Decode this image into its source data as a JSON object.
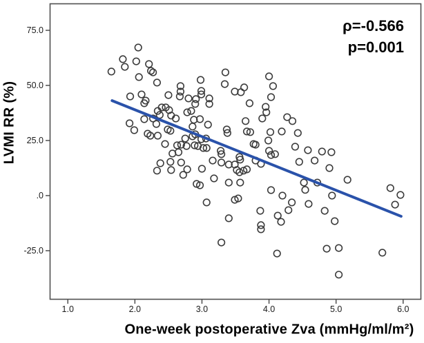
{
  "figure": {
    "background": "#ffffff"
  },
  "chart_data": {
    "type": "scatter",
    "title": "",
    "xlabel": "One-week postoperative Zva (mmHg/ml/m²)",
    "ylabel": "LVMI RR (%)",
    "annotation": {
      "rho": "ρ=-0.566",
      "p": "p=0.001"
    },
    "xlim": [
      0.73,
      6.27
    ],
    "ylim": [
      -47.2,
      87.2
    ],
    "grid": false,
    "legend": "none",
    "axis_color": "#4f4f4f",
    "tick_label_color": "#1a1a1a",
    "x_ticks": [
      {
        "v": 1.0,
        "label": "1.0"
      },
      {
        "v": 2.0,
        "label": "2.0"
      },
      {
        "v": 3.0,
        "label": "3.0"
      },
      {
        "v": 4.0,
        "label": "4.0"
      },
      {
        "v": 5.0,
        "label": "5.0"
      },
      {
        "v": 6.0,
        "label": "6.0"
      }
    ],
    "y_ticks": [
      {
        "v": 75,
        "label": "75.0"
      },
      {
        "v": 50,
        "label": "50.0"
      },
      {
        "v": 25,
        "label": "25.0"
      },
      {
        "v": 0,
        "label": ".0"
      },
      {
        "v": -25,
        "label": "-25.0"
      }
    ],
    "marker": {
      "shape": "open-circle",
      "radius": 4.8,
      "stroke": "#3c3c3c",
      "stroke_width": 1.6
    },
    "trend_line": {
      "x1": 1.66,
      "y1": 43.1,
      "x2": 5.97,
      "y2": -9.4,
      "color": "#2a52aa",
      "width": 4
    },
    "points": [
      [
        2.05,
        67.2
      ],
      [
        1.82,
        61.9
      ],
      [
        2.02,
        60.9
      ],
      [
        1.85,
        58.4
      ],
      [
        2.21,
        59.7
      ],
      [
        2.24,
        56.6
      ],
      [
        2.27,
        55.9
      ],
      [
        1.65,
        56.3
      ],
      [
        2.06,
        53.8
      ],
      [
        2.33,
        51.3
      ],
      [
        1.93,
        45.0
      ],
      [
        2.1,
        45.9
      ],
      [
        2.16,
        43.1
      ],
      [
        2.5,
        45.6
      ],
      [
        2.68,
        49.7
      ],
      [
        2.68,
        47.2
      ],
      [
        2.67,
        45.0
      ],
      [
        2.98,
        52.5
      ],
      [
        3.35,
        55.9
      ],
      [
        3.34,
        50.6
      ],
      [
        2.99,
        47.5
      ],
      [
        2.99,
        45.9
      ],
      [
        3.49,
        47.2
      ],
      [
        3.58,
        46.9
      ],
      [
        3.63,
        49.1
      ],
      [
        4.0,
        54.1
      ],
      [
        4.06,
        49.7
      ],
      [
        4.03,
        44.7
      ],
      [
        2.8,
        44.1
      ],
      [
        2.91,
        43.8
      ],
      [
        3.11,
        44.1
      ],
      [
        2.14,
        41.9
      ],
      [
        2.34,
        38.4
      ],
      [
        2.4,
        40.0
      ],
      [
        2.46,
        40.0
      ],
      [
        2.51,
        38.8
      ],
      [
        2.54,
        36.3
      ],
      [
        2.37,
        36.6
      ],
      [
        2.14,
        34.7
      ],
      [
        2.27,
        35.0
      ],
      [
        1.92,
        32.8
      ],
      [
        2.32,
        32.5
      ],
      [
        1.99,
        29.7
      ],
      [
        2.19,
        28.1
      ],
      [
        2.23,
        27.2
      ],
      [
        2.34,
        27.2
      ],
      [
        2.49,
        30.0
      ],
      [
        2.53,
        29.4
      ],
      [
        2.45,
        23.4
      ],
      [
        2.56,
        19.1
      ],
      [
        2.38,
        14.7
      ],
      [
        2.53,
        15.3
      ],
      [
        2.33,
        11.3
      ],
      [
        2.54,
        11.6
      ],
      [
        3.11,
        41.6
      ],
      [
        2.9,
        41.6
      ],
      [
        2.78,
        37.8
      ],
      [
        2.84,
        38.4
      ],
      [
        2.61,
        35.0
      ],
      [
        2.88,
        34.4
      ],
      [
        2.97,
        34.7
      ],
      [
        2.86,
        31.3
      ],
      [
        3.09,
        32.2
      ],
      [
        2.9,
        27.8
      ],
      [
        2.86,
        26.9
      ],
      [
        2.99,
        25.6
      ],
      [
        3.06,
        25.9
      ],
      [
        2.75,
        25.9
      ],
      [
        2.69,
        23.1
      ],
      [
        2.63,
        22.8
      ],
      [
        2.77,
        22.5
      ],
      [
        2.89,
        22.8
      ],
      [
        2.94,
        22.5
      ],
      [
        3.02,
        21.6
      ],
      [
        3.07,
        21.6
      ],
      [
        2.65,
        19.7
      ],
      [
        3.28,
        20.3
      ],
      [
        3.29,
        18.8
      ],
      [
        3.38,
        28.4
      ],
      [
        3.37,
        30.0
      ],
      [
        3.65,
        33.8
      ],
      [
        3.71,
        41.9
      ],
      [
        3.95,
        40.3
      ],
      [
        3.96,
        37.8
      ],
      [
        3.9,
        35.0
      ],
      [
        4.27,
        35.6
      ],
      [
        4.35,
        33.8
      ],
      [
        3.67,
        29.1
      ],
      [
        3.72,
        28.8
      ],
      [
        4.02,
        28.8
      ],
      [
        4.19,
        29.1
      ],
      [
        3.99,
        25.0
      ],
      [
        3.77,
        23.4
      ],
      [
        3.8,
        23.1
      ],
      [
        4.39,
        22.2
      ],
      [
        4.0,
        20.3
      ],
      [
        4.03,
        18.4
      ],
      [
        4.09,
        18.8
      ],
      [
        3.56,
        17.5
      ],
      [
        3.57,
        16.3
      ],
      [
        3.8,
        15.9
      ],
      [
        3.88,
        14.4
      ],
      [
        3.16,
        15.9
      ],
      [
        3.29,
        15.0
      ],
      [
        3.4,
        14.1
      ],
      [
        3.49,
        14.1
      ],
      [
        3.52,
        11.6
      ],
      [
        3.56,
        10.6
      ],
      [
        3.62,
        11.3
      ],
      [
        3.67,
        11.9
      ],
      [
        3.0,
        12.2
      ],
      [
        2.78,
        11.9
      ],
      [
        2.69,
        15.0
      ],
      [
        2.72,
        9.4
      ],
      [
        2.92,
        5.3
      ],
      [
        2.97,
        4.7
      ],
      [
        3.18,
        7.8
      ],
      [
        3.4,
        5.9
      ],
      [
        3.57,
        5.9
      ],
      [
        4.03,
        2.5
      ],
      [
        3.54,
        -1.3
      ],
      [
        3.49,
        -1.9
      ],
      [
        4.2,
        0.0
      ],
      [
        4.43,
        28.4
      ],
      [
        4.45,
        15.3
      ],
      [
        4.58,
        20.6
      ],
      [
        4.68,
        15.9
      ],
      [
        4.79,
        20.0
      ],
      [
        4.93,
        19.7
      ],
      [
        4.9,
        12.5
      ],
      [
        4.72,
        5.9
      ],
      [
        4.52,
        5.9
      ],
      [
        4.54,
        2.6
      ],
      [
        5.17,
        7.2
      ],
      [
        4.94,
        0.0
      ],
      [
        5.81,
        3.4
      ],
      [
        5.96,
        0.3
      ],
      [
        3.07,
        -3.1
      ],
      [
        3.87,
        -6.9
      ],
      [
        3.4,
        -10.3
      ],
      [
        4.13,
        -9.1
      ],
      [
        4.29,
        -6.6
      ],
      [
        4.34,
        -3.1
      ],
      [
        4.18,
        -11.9
      ],
      [
        3.88,
        -13.4
      ],
      [
        3.88,
        -15.3
      ],
      [
        3.29,
        -21.3
      ],
      [
        4.12,
        -26.3
      ],
      [
        4.59,
        -3.8
      ],
      [
        4.83,
        -6.9
      ],
      [
        4.98,
        -11.6
      ],
      [
        5.88,
        -4.1
      ],
      [
        4.86,
        -24.1
      ],
      [
        5.04,
        -23.8
      ],
      [
        5.69,
        -25.9
      ],
      [
        5.04,
        -35.9
      ]
    ]
  }
}
